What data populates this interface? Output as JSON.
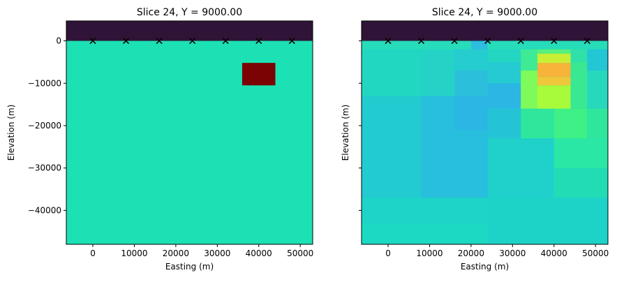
{
  "chart_data": [
    {
      "type": "heatmap",
      "title": "Slice 24, Y = 9000.00",
      "xlabel": "Easting (m)",
      "ylabel": "Elevation (m)",
      "xlim": [
        -6400,
        53000
      ],
      "ylim": [
        -48000,
        4700
      ],
      "xticks": [
        0,
        10000,
        20000,
        30000,
        40000,
        50000
      ],
      "xtick_labels": [
        "0",
        "10000",
        "20000",
        "30000",
        "40000",
        "50000"
      ],
      "yticks": [
        0,
        -10000,
        -20000,
        -30000,
        -40000
      ],
      "ytick_labels": [
        "0",
        "−10000",
        "−20000",
        "−30000",
        "−40000"
      ],
      "show_ytick_labels": true,
      "background": "#1ce1b4",
      "cells": [
        {
          "x0": -6400,
          "x1": 53000,
          "y0": 0,
          "y1": 4700,
          "color": "#301437"
        },
        {
          "x0": 36000,
          "x1": 44000,
          "y0": -10500,
          "y1": -5200,
          "color": "#7b0303"
        }
      ],
      "markers": {
        "symbol": "x",
        "x": [
          0,
          8000,
          16000,
          24000,
          32000,
          40000,
          48000
        ],
        "y": [
          0,
          0,
          0,
          0,
          0,
          0,
          0
        ]
      }
    },
    {
      "type": "heatmap",
      "title": "Slice 24, Y = 9000.00",
      "xlabel": "Easting (m)",
      "ylabel": "Elevation (m)",
      "xlim": [
        -6400,
        53000
      ],
      "ylim": [
        -48000,
        4700
      ],
      "xticks": [
        0,
        10000,
        20000,
        30000,
        40000,
        50000
      ],
      "xtick_labels": [
        "0",
        "10000",
        "20000",
        "30000",
        "40000",
        "50000"
      ],
      "yticks": [
        0,
        -10000,
        -20000,
        -30000,
        -40000
      ],
      "ytick_labels": [],
      "show_ytick_labels": false,
      "background": "#1fd5c5",
      "cells": [
        {
          "x0": -6400,
          "x1": 53000,
          "y0": -48000,
          "y1": -37000,
          "color": "#1ed3c8"
        },
        {
          "x0": -6400,
          "x1": 24000,
          "y0": -48000,
          "y1": -43000,
          "color": "#1cd9c4"
        },
        {
          "x0": 24000,
          "x1": 53000,
          "y0": -48000,
          "y1": -37000,
          "color": "#1dd3c8"
        },
        {
          "x0": -6400,
          "x1": 8000,
          "y0": -37000,
          "y1": -13000,
          "color": "#21cbd0"
        },
        {
          "x0": 8000,
          "x1": 24000,
          "y0": -37000,
          "y1": -13000,
          "color": "#28bede"
        },
        {
          "x0": 16000,
          "x1": 24000,
          "y0": -21000,
          "y1": -13000,
          "color": "#2bb6e4"
        },
        {
          "x0": 24000,
          "x1": 32000,
          "y0": -23000,
          "y1": -16000,
          "color": "#24c4d6"
        },
        {
          "x0": 24000,
          "x1": 40000,
          "y0": -37000,
          "y1": -23000,
          "color": "#20d0cb"
        },
        {
          "x0": 40000,
          "x1": 53000,
          "y0": -37000,
          "y1": -23000,
          "color": "#22dcb6"
        },
        {
          "x0": 40000,
          "x1": 53000,
          "y0": -30000,
          "y1": -23000,
          "color": "#2ae7a5"
        },
        {
          "x0": 32000,
          "x1": 40000,
          "y0": -23000,
          "y1": -16000,
          "color": "#2ee69c"
        },
        {
          "x0": 40000,
          "x1": 48000,
          "y0": -23000,
          "y1": -16000,
          "color": "#3ef086"
        },
        {
          "x0": 48000,
          "x1": 53000,
          "y0": -23000,
          "y1": -16000,
          "color": "#2fe69c"
        },
        {
          "x0": -6400,
          "x1": 8000,
          "y0": -13000,
          "y1": 0,
          "color": "#22d7c1"
        },
        {
          "x0": 8000,
          "x1": 16000,
          "y0": -13000,
          "y1": -2000,
          "color": "#24d3c6"
        },
        {
          "x0": 16000,
          "x1": 24000,
          "y0": -13000,
          "y1": -7000,
          "color": "#2bbfdc"
        },
        {
          "x0": 16000,
          "x1": 24000,
          "y0": -7000,
          "y1": -2000,
          "color": "#25ccd0"
        },
        {
          "x0": 24000,
          "x1": 32000,
          "y0": -16000,
          "y1": -10000,
          "color": "#2bb6e4"
        },
        {
          "x0": 24000,
          "x1": 32000,
          "y0": -10000,
          "y1": -5000,
          "color": "#25cbd0"
        },
        {
          "x0": 24000,
          "x1": 32000,
          "y0": -5000,
          "y1": -2000,
          "color": "#24d6c2"
        },
        {
          "x0": 32000,
          "x1": 36000,
          "y0": -16000,
          "y1": -7000,
          "color": "#7efb5a"
        },
        {
          "x0": 32000,
          "x1": 36000,
          "y0": -7000,
          "y1": -2000,
          "color": "#3fea94"
        },
        {
          "x0": 36000,
          "x1": 44000,
          "y0": -16000,
          "y1": -10500,
          "color": "#a8fb3b"
        },
        {
          "x0": 36000,
          "x1": 44000,
          "y0": -10500,
          "y1": -8500,
          "color": "#f0c63a"
        },
        {
          "x0": 36000,
          "x1": 44000,
          "y0": -8500,
          "y1": -5200,
          "color": "#f7b33a"
        },
        {
          "x0": 36000,
          "x1": 44000,
          "y0": -5200,
          "y1": -3000,
          "color": "#c9ef34"
        },
        {
          "x0": 36000,
          "x1": 44000,
          "y0": -3000,
          "y1": 0,
          "color": "#56f07c"
        },
        {
          "x0": 44000,
          "x1": 48000,
          "y0": -16000,
          "y1": -5000,
          "color": "#3ae891"
        },
        {
          "x0": 44000,
          "x1": 48000,
          "y0": -5000,
          "y1": 0,
          "color": "#2fe1a8"
        },
        {
          "x0": 48000,
          "x1": 53000,
          "y0": -16000,
          "y1": -7000,
          "color": "#27d8bd"
        },
        {
          "x0": 48000,
          "x1": 53000,
          "y0": -7000,
          "y1": -2000,
          "color": "#23c6d4"
        },
        {
          "x0": -6400,
          "x1": 53000,
          "y0": -2000,
          "y1": 0,
          "color": "#27dcb9"
        },
        {
          "x0": 20000,
          "x1": 24000,
          "y0": -2000,
          "y1": 0,
          "color": "#2cbde0"
        },
        {
          "x0": -6400,
          "x1": 53000,
          "y0": 0,
          "y1": 4700,
          "color": "#301437"
        }
      ],
      "markers": {
        "symbol": "x",
        "x": [
          0,
          8000,
          16000,
          24000,
          32000,
          40000,
          48000
        ],
        "y": [
          0,
          0,
          0,
          0,
          0,
          0,
          0
        ]
      }
    }
  ]
}
